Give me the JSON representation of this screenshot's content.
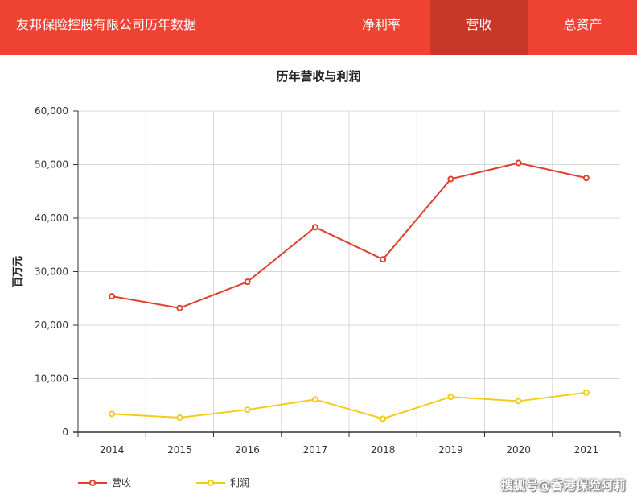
{
  "header": {
    "title": "友邦保险控股有限公司历年数据",
    "tabs": [
      {
        "label": "净利率",
        "active": false
      },
      {
        "label": "营收",
        "active": true
      },
      {
        "label": "总资产",
        "active": false
      }
    ],
    "color": "#ee4232",
    "active_tab_color": "#c9372a"
  },
  "watermark": "搜狐号@香港保险阿莉",
  "chart_data": {
    "type": "line",
    "title": "历年营收与利润",
    "xlabel": "",
    "ylabel": "百万元",
    "categories": [
      "2014",
      "2015",
      "2016",
      "2017",
      "2018",
      "2019",
      "2020",
      "2021"
    ],
    "ylim": [
      0,
      60000
    ],
    "yticks": [
      "0",
      "10,000",
      "20,000",
      "30,000",
      "40,000",
      "50,000",
      "60,000"
    ],
    "grid": true,
    "legend_position": "bottom-left",
    "series": [
      {
        "name": "营收",
        "color": "#e0402e",
        "values": [
          25400,
          23200,
          28100,
          38300,
          32300,
          47300,
          50300,
          47500
        ]
      },
      {
        "name": "利润",
        "color": "#f2cc1d",
        "values": [
          3400,
          2700,
          4200,
          6100,
          2500,
          6600,
          5800,
          7400
        ]
      }
    ]
  }
}
